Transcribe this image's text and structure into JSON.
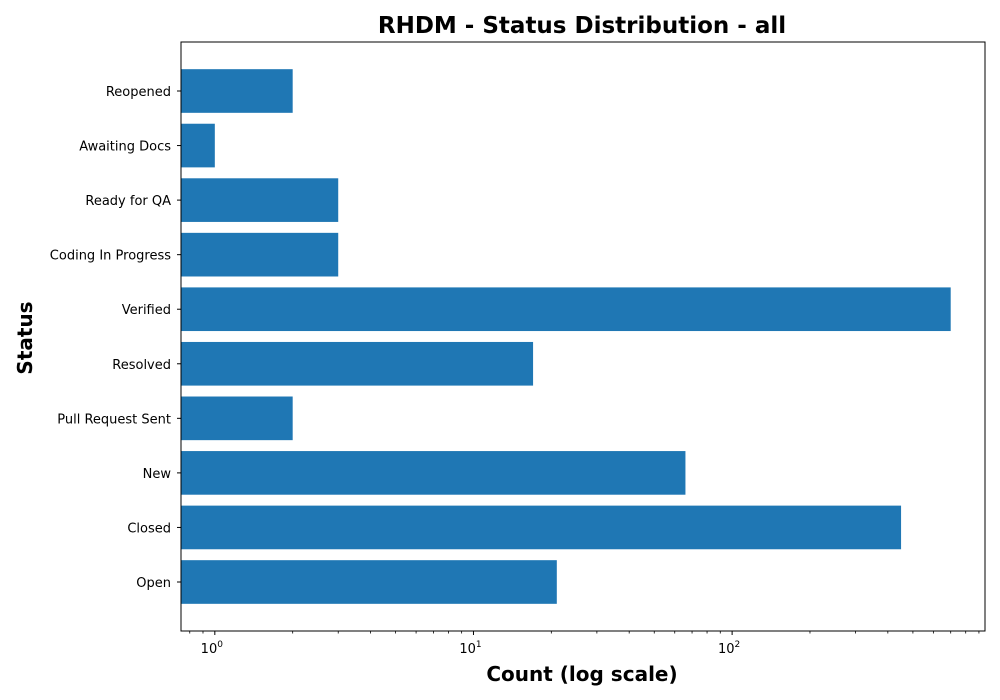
{
  "chart_data": {
    "type": "bar",
    "orientation": "horizontal",
    "title": "RHDM - Status Distribution - all",
    "xlabel": "Count (log scale)",
    "ylabel": "Status",
    "x_scale": "log",
    "xlim": [
      0.74,
      950
    ],
    "x_ticks": [
      {
        "base": "10",
        "exp": "0",
        "value": 1
      },
      {
        "base": "10",
        "exp": "1",
        "value": 10
      },
      {
        "base": "10",
        "exp": "2",
        "value": 100
      }
    ],
    "categories": [
      "Open",
      "Closed",
      "New",
      "Pull Request Sent",
      "Resolved",
      "Verified",
      "Coding In Progress",
      "Ready for QA",
      "Awaiting Docs",
      "Reopened"
    ],
    "values": [
      21,
      450,
      66,
      2,
      17,
      700,
      3,
      3,
      1,
      2
    ],
    "bar_color": "#1f77b4",
    "grid": false,
    "legend": "none"
  }
}
